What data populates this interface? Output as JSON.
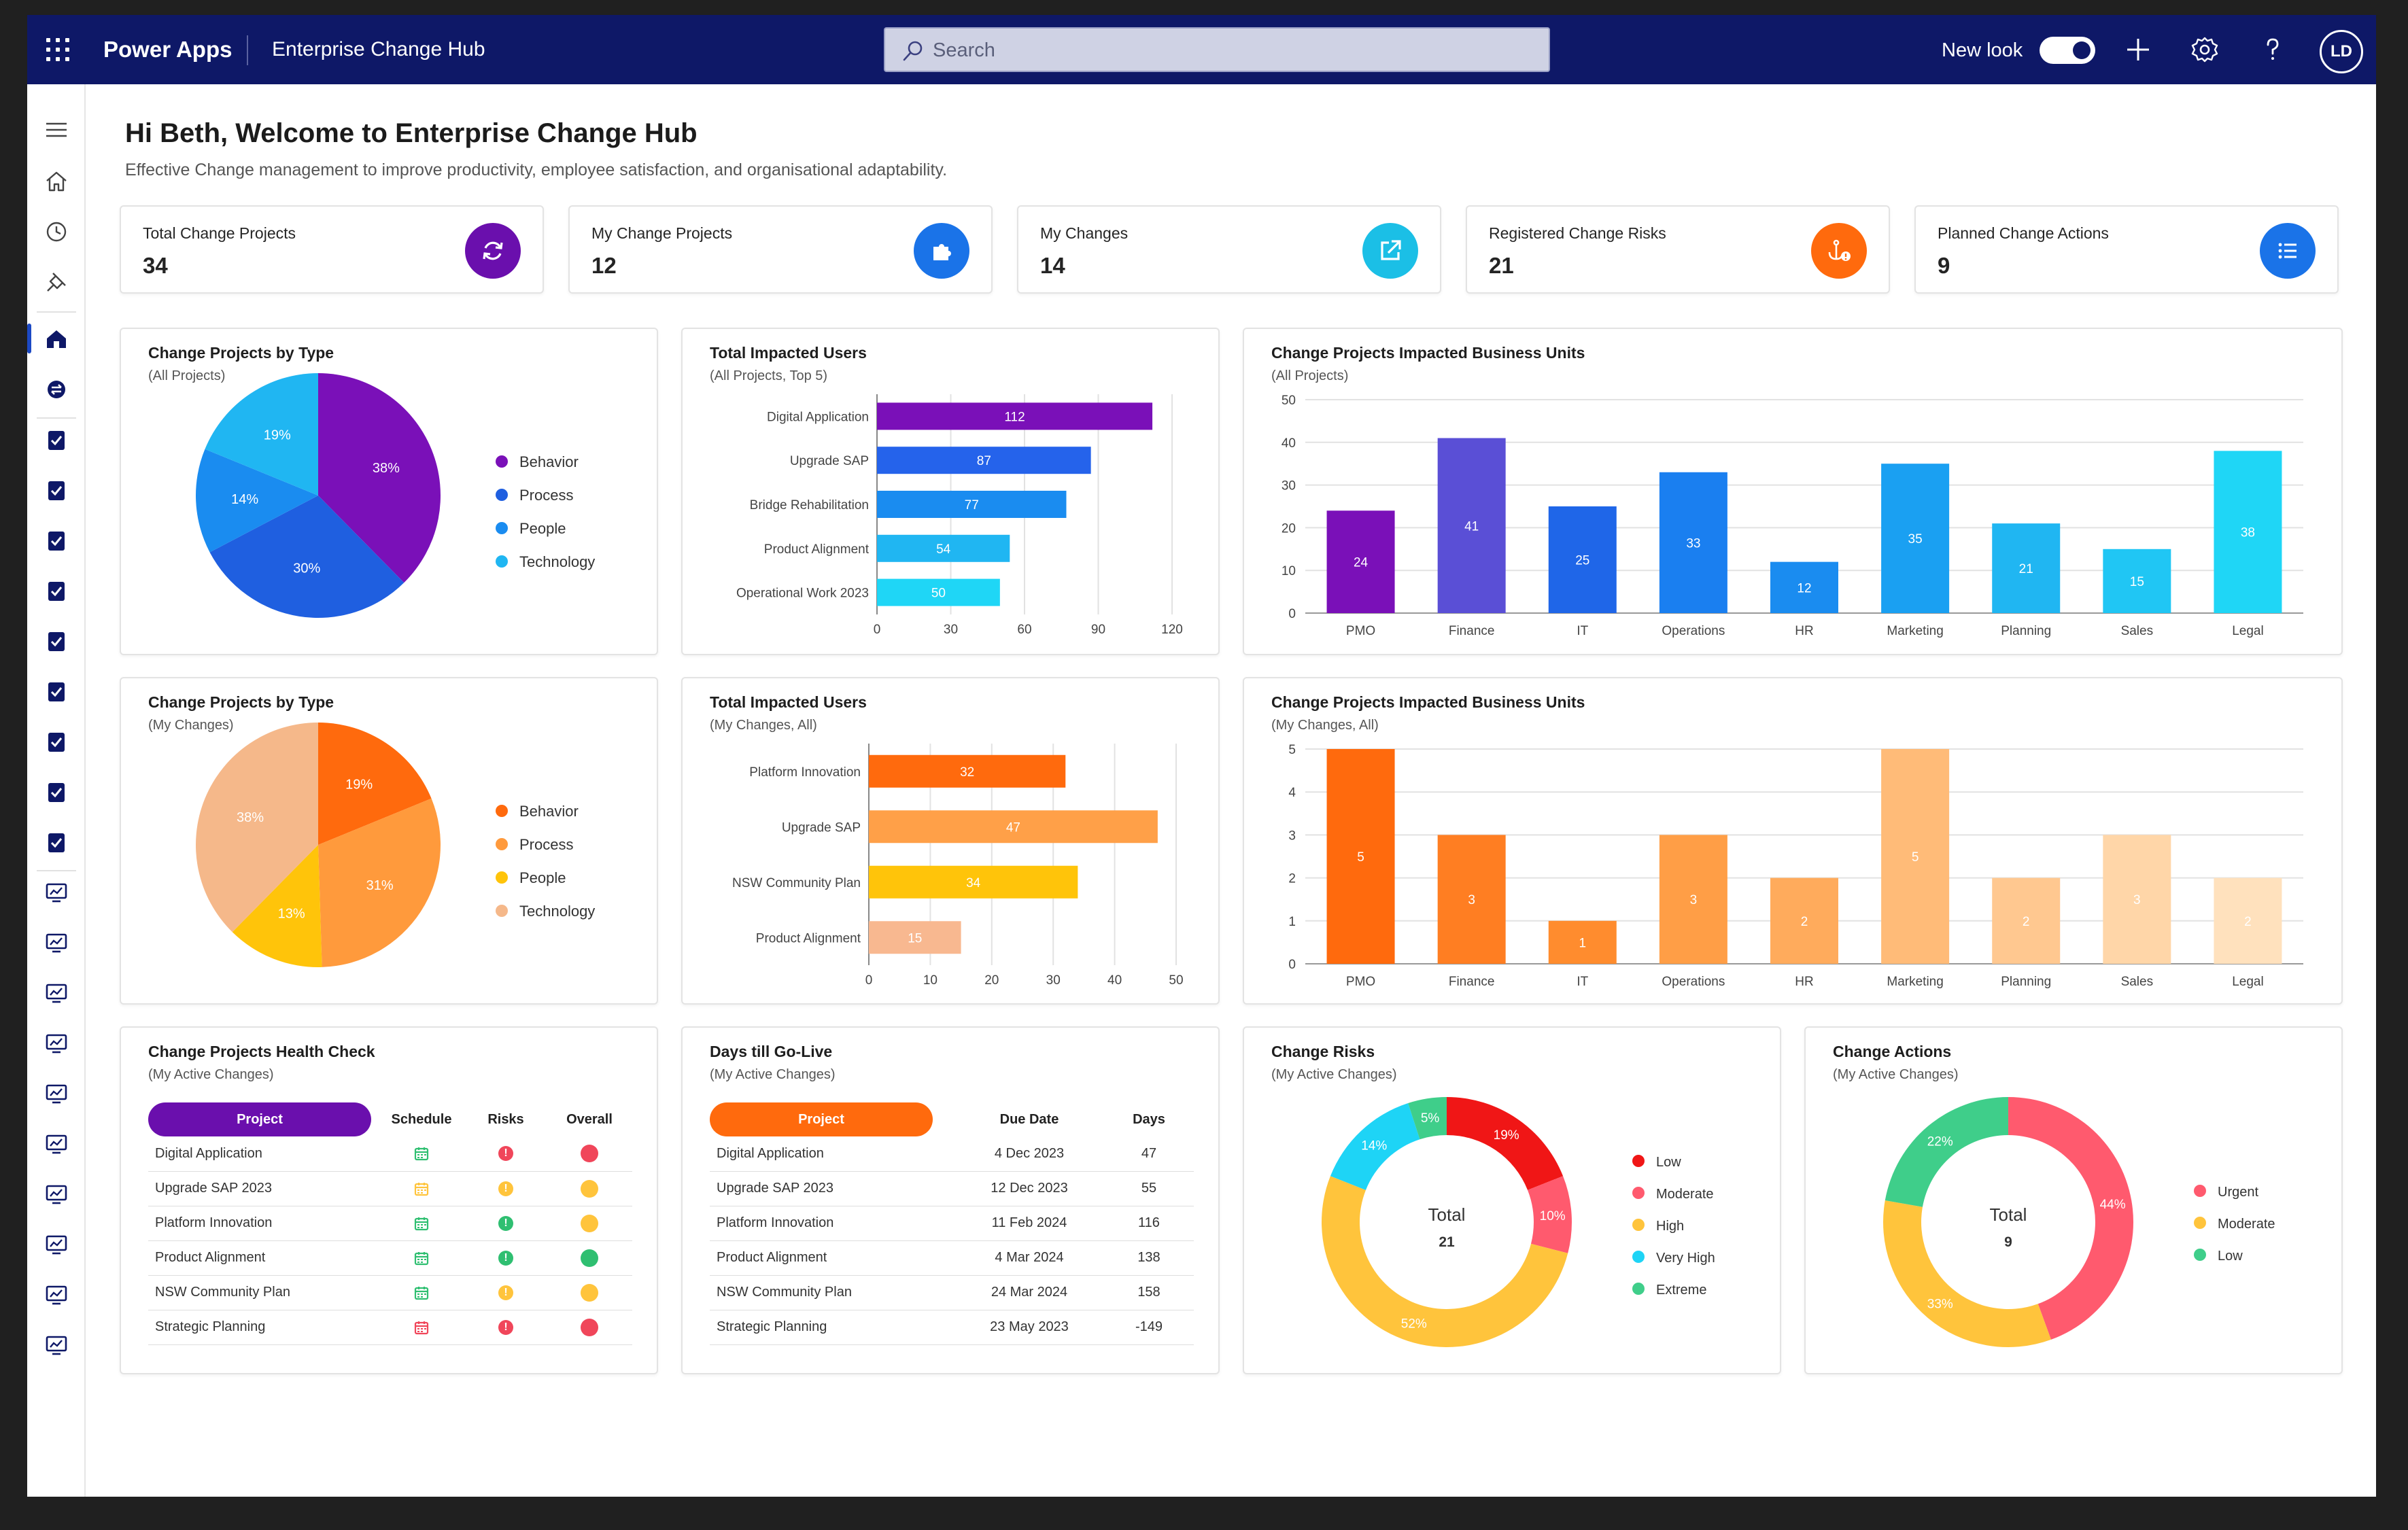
{
  "topbar": {
    "app_name": "Power Apps",
    "env_name": "Enterprise Change Hub",
    "search_placeholder": "Search",
    "new_look_label": "New look",
    "new_look_on": true,
    "avatar_initials": "LD"
  },
  "header": {
    "greeting": "Hi Beth, Welcome to Enterprise Change Hub",
    "subtitle": "Effective Change management to improve productivity, employee satisfaction, and organisational adaptability."
  },
  "kpis": [
    {
      "label": "Total Change Projects",
      "value": "34",
      "color": "#6a0fad",
      "icon": "refresh-icon"
    },
    {
      "label": "My Change Projects",
      "value": "12",
      "color": "#1a73e8",
      "icon": "puzzle-icon"
    },
    {
      "label": "My Changes",
      "value": "14",
      "color": "#1bbfe6",
      "icon": "external-link-icon"
    },
    {
      "label": "Registered Change Risks",
      "value": "21",
      "color": "#ff6a0d",
      "icon": "anchor-warning-icon"
    },
    {
      "label": "Planned Change Actions",
      "value": "9",
      "color": "#1a73e8",
      "icon": "list-icon"
    }
  ],
  "charts": {
    "pie_all": {
      "title": "Change Projects by Type",
      "subtitle": "(All Projects)"
    },
    "bar_users_all": {
      "title": "Total Impacted Users",
      "subtitle": "(All Projects, Top 5)"
    },
    "col_units_all": {
      "title": "Change Projects Impacted Business Units",
      "subtitle": "(All Projects)"
    },
    "pie_my": {
      "title": "Change Projects by Type",
      "subtitle": "(My Changes)"
    },
    "bar_users_my": {
      "title": "Total Impacted Users",
      "subtitle": "(My Changes, All)"
    },
    "col_units_my": {
      "title": "Change Projects Impacted Business Units",
      "subtitle": "(My Changes, All)"
    },
    "donut_risks": {
      "title": "Change Risks",
      "subtitle": "(My Active Changes)",
      "center_label": "Total",
      "center_value": "21"
    },
    "donut_actions": {
      "title": "Change Actions",
      "subtitle": "(My Active Changes)",
      "center_label": "Total",
      "center_value": "9"
    }
  },
  "chart_data": [
    {
      "id": "pie_all",
      "type": "pie",
      "title": "Change Projects by Type (All Projects)",
      "categories": [
        "Behavior",
        "Process",
        "People",
        "Technology"
      ],
      "values": [
        38,
        30,
        14,
        19
      ],
      "labels": [
        "38%",
        "30%",
        "14%",
        "19%"
      ],
      "colors": [
        "#7a10b8",
        "#1f5fe0",
        "#1a8cf0",
        "#20b6f2"
      ]
    },
    {
      "id": "bar_users_all",
      "type": "bar",
      "orientation": "horizontal",
      "title": "Total Impacted Users (All Projects, Top 5)",
      "categories": [
        "Digital Application",
        "Upgrade SAP",
        "Bridge Rehabilitation",
        "Product Alignment",
        "Operational Work 2023"
      ],
      "values": [
        112,
        87,
        77,
        54,
        50
      ],
      "colors": [
        "#7a10b8",
        "#2563eb",
        "#1a8cf0",
        "#20b6f2",
        "#1fd6f6"
      ],
      "xlim": [
        0,
        120
      ],
      "xticks": [
        "0",
        "30",
        "60",
        "90",
        "120"
      ]
    },
    {
      "id": "col_units_all",
      "type": "bar",
      "title": "Change Projects Impacted Business Units (All Projects)",
      "categories": [
        "PMO",
        "Finance",
        "IT",
        "Operations",
        "HR",
        "Marketing",
        "Planning",
        "Sales",
        "Legal"
      ],
      "values": [
        24,
        41,
        25,
        33,
        12,
        35,
        21,
        15,
        38
      ],
      "colors": [
        "#7a10b8",
        "#5a4fd6",
        "#1f66e8",
        "#1a7ff0",
        "#1a8cf0",
        "#1aa0f2",
        "#20b6f2",
        "#20c6f4",
        "#1fd6f6"
      ],
      "ylim": [
        0,
        50
      ],
      "yticks": [
        "0",
        "10",
        "20",
        "30",
        "40",
        "50"
      ]
    },
    {
      "id": "pie_my",
      "type": "pie",
      "title": "Change Projects by Type (My Changes)",
      "categories": [
        "Behavior",
        "Process",
        "People",
        "Technology"
      ],
      "values": [
        19,
        31,
        13,
        38
      ],
      "labels": [
        "19%",
        "31%",
        "13%",
        "38%"
      ],
      "colors": [
        "#ff6a0d",
        "#ff9a3c",
        "#ffc40a",
        "#f5b88a"
      ]
    },
    {
      "id": "bar_users_my",
      "type": "bar",
      "orientation": "horizontal",
      "title": "Total Impacted Users (My Changes, All)",
      "categories": [
        "Platform Innovation",
        "Upgrade SAP",
        "NSW Community Plan",
        "Product Alignment"
      ],
      "values": [
        32,
        47,
        34,
        15
      ],
      "colors": [
        "#ff6a0d",
        "#ffa048",
        "#ffc40a",
        "#f8b890"
      ],
      "xlim": [
        0,
        50
      ],
      "xticks": [
        "0",
        "10",
        "20",
        "30",
        "40",
        "50"
      ]
    },
    {
      "id": "col_units_my",
      "type": "bar",
      "title": "Change Projects Impacted Business Units (My Changes, All)",
      "categories": [
        "PMO",
        "Finance",
        "IT",
        "Operations",
        "HR",
        "Marketing",
        "Planning",
        "Sales",
        "Legal"
      ],
      "values": [
        5,
        3,
        1,
        3,
        2,
        5,
        2,
        3,
        2
      ],
      "colors": [
        "#ff6a0d",
        "#ff7e22",
        "#ff8c2e",
        "#ff9e46",
        "#ffab5c",
        "#ffbb78",
        "#ffc890",
        "#ffd6a8",
        "#ffe1bd"
      ],
      "ylim": [
        0,
        5
      ],
      "yticks": [
        "0",
        "1",
        "2",
        "3",
        "4",
        "5"
      ]
    },
    {
      "id": "donut_risks",
      "type": "pie",
      "subtype": "donut",
      "title": "Change Risks (My Active Changes)",
      "categories": [
        "Low",
        "Moderate",
        "High",
        "Very High",
        "Extreme"
      ],
      "values": [
        19,
        10,
        52,
        14,
        5
      ],
      "labels": [
        "19%",
        "10%",
        "52%",
        "14%",
        "5%"
      ],
      "colors": [
        "#f01616",
        "#ff5a6e",
        "#ffc43c",
        "#1ed4f6",
        "#3fce8a"
      ]
    },
    {
      "id": "donut_actions",
      "type": "pie",
      "subtype": "donut",
      "title": "Change Actions (My Active Changes)",
      "categories": [
        "Urgent",
        "Moderate",
        "Low"
      ],
      "values": [
        44,
        33,
        22
      ],
      "labels": [
        "44%",
        "33%",
        "22%"
      ],
      "colors": [
        "#ff5a6e",
        "#ffc43c",
        "#3fce8a"
      ]
    }
  ],
  "health": {
    "title": "Change Projects Health Check",
    "subtitle": "(My Active Changes)",
    "headers": [
      "Project",
      "Schedule",
      "Risks",
      "Overall"
    ],
    "rows": [
      {
        "project": "Digital Application",
        "schedule": "#2fbf71",
        "risks": "#f0465a",
        "overall": "#f0465a"
      },
      {
        "project": "Upgrade SAP 2023",
        "schedule": "#ffc43c",
        "risks": "#ffc43c",
        "overall": "#ffc43c"
      },
      {
        "project": "Platform Innovation",
        "schedule": "#2fbf71",
        "risks": "#2fbf71",
        "overall": "#ffc43c"
      },
      {
        "project": "Product Alignment",
        "schedule": "#2fbf71",
        "risks": "#2fbf71",
        "overall": "#2fbf71"
      },
      {
        "project": "NSW Community Plan",
        "schedule": "#2fbf71",
        "risks": "#ffc43c",
        "overall": "#ffc43c"
      },
      {
        "project": "Strategic Planning",
        "schedule": "#f0465a",
        "risks": "#f0465a",
        "overall": "#f0465a"
      }
    ]
  },
  "golive": {
    "title": "Days till Go-Live",
    "subtitle": "(My Active Changes)",
    "headers": [
      "Project",
      "Due Date",
      "Days"
    ],
    "rows": [
      {
        "project": "Digital Application",
        "due": "4 Dec 2023",
        "days": "47"
      },
      {
        "project": "Upgrade SAP 2023",
        "due": "12 Dec 2023",
        "days": "55"
      },
      {
        "project": "Platform Innovation",
        "due": "11 Feb 2024",
        "days": "116"
      },
      {
        "project": "Product Alignment",
        "due": "4 Mar 2024",
        "days": "138"
      },
      {
        "project": "NSW Community Plan",
        "due": "24 Mar 2024",
        "days": "158"
      },
      {
        "project": "Strategic Planning",
        "due": "23 May 2023",
        "days": "-149"
      }
    ]
  },
  "colors": {
    "topbar": "#0e1867",
    "purple_pill": "#6a0fad",
    "orange_pill": "#ff6a0d"
  }
}
